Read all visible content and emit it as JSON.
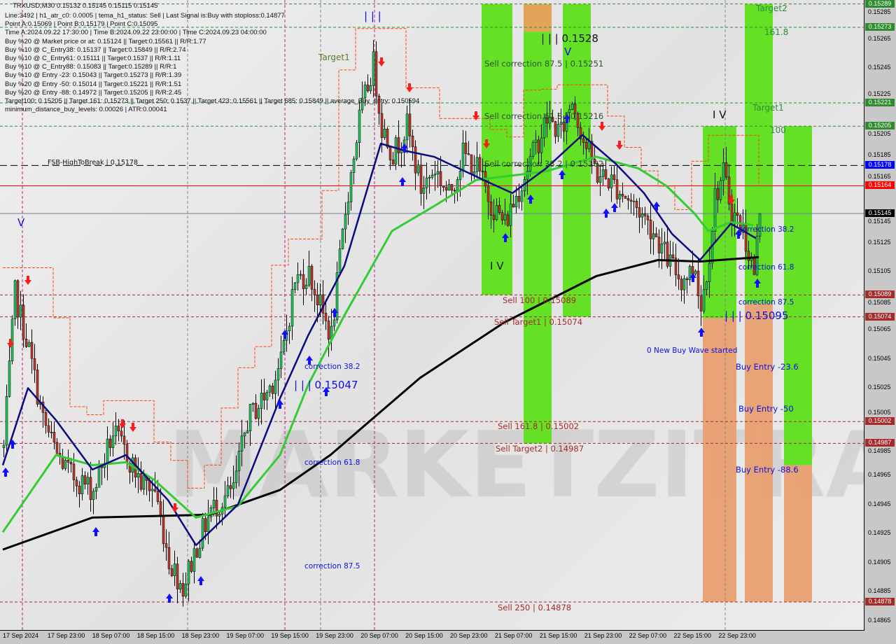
{
  "info": {
    "title_line": "TRXUSD,M30  0.15132 0.15145 0.15115 0.15145",
    "lines": [
      "Line:3492 | h1_atr_c0: 0.0005 | tema_h1_status: Sell | Last Signal is:Buy with stoploss:0.14877",
      "Point A:0.15069 | Point B:0.15179 | Point C:0.15095",
      "Time A:2024.09.22 17:30:00 | Time B:2024.09.22 23:00:00 | Time C:2024.09.23 04:00:00",
      "Buy %20 @ Market price or at: 0.15124 || Target:0.15561 || R/R:1.77",
      "Buy %10 @ C_Entry38: 0.15137 || Target:0.15849 || R/R:2.74",
      "Buy %10 @ C_Entry61: 0.15111 || Target:0.1537 || R/R:1.11",
      "Buy %10 @ C_Entry88: 0.15083 || Target:0.15289 || R/R:1",
      "Buy %10 @ Entry -23: 0.15043 || Target:0.15273 || R/R:1.39",
      "Buy %20 @ Entry -50: 0.15014 || Target:0.15221 || R/R:1.51",
      "Buy %20 @ Entry -88: 0.14972 || Target:0.15205 || R/R:2.45",
      "Target100: 0.15205 || Target 161: 0.15273 || Target 250: 0.1537 || Target 423: 0.15561 || Target 685: 0.15849 || average_Buy_entry: 0.150594",
      "minimum_distance_buy_levels: 0.00026 | ATR:0.00041"
    ]
  },
  "labels": {
    "target1_left": "Target1",
    "fsb": "FSB-HighToBreak | 0.15178",
    "wave_top": "| | | 0.1528",
    "sell_corr_875": "Sell correction 87.5 | 0.15251",
    "sell_corr_618": "Sell correction 61.8 | 0.15216",
    "sell_corr_382": "Sell correction 38.2 | 0.15182",
    "sell_100": "Sell 100 | 0.15089",
    "sell_target1": "Sell Target1 | 0.15074",
    "sell_1618": "Sell 161.8 | 0.15002",
    "sell_target2": "Sell Target2 | 0.14987",
    "sell_250": "Sell  250 | 0.14878",
    "corr_382_left": "correction 38.2",
    "wave_left": "| | | 0.15047",
    "corr_618_left": "correction 61.8",
    "corr_875_left": "correction 87.5",
    "iv_mid": "I V",
    "iv_right": "I V",
    "v_left": "V",
    "iii_top": "| | |",
    "v_top": "V",
    "new_wave": "0 New Buy Wave started",
    "corr_382_right": "correction 38.2",
    "corr_618_right": "correction 61.8",
    "corr_875_right": "correction 87.5",
    "wave_right": "| | | 0.15095",
    "buy_entry_236": "Buy Entry -23.6",
    "buy_entry_50": "Buy Entry -50",
    "buy_entry_886": "Buy Entry -88.6",
    "target2_right": "Target2",
    "lvl_1618": "161.8",
    "target1_right": "Target1",
    "lvl_100": "100",
    "watermark": "MARKETZITRADE"
  },
  "chart_data": {
    "type": "candlestick",
    "symbol": "TRXUSD",
    "timeframe": "M30",
    "ylim": [
      0.14855,
      0.15295
    ],
    "y_ticks": [
      "0.15285",
      "0.15265",
      "0.15245",
      "0.15225",
      "0.15205",
      "0.15185",
      "0.15165",
      "0.15145",
      "0.15125",
      "0.15105",
      "0.15085",
      "0.15065",
      "0.15045",
      "0.15025",
      "0.15005",
      "0.14985",
      "0.14965",
      "0.14945",
      "0.14925",
      "0.14905",
      "0.14885",
      "0.14865"
    ],
    "x_ticks": [
      "17 Sep 2024",
      "17 Sep 23:00",
      "18 Sep 07:00",
      "18 Sep 15:00",
      "18 Sep 23:00",
      "19 Sep 07:00",
      "19 Sep 15:00",
      "19 Sep 23:00",
      "20 Sep 07:00",
      "20 Sep 15:00",
      "20 Sep 23:00",
      "21 Sep 07:00",
      "21 Sep 15:00",
      "21 Sep 23:00",
      "22 Sep 07:00",
      "22 Sep 15:00",
      "22 Sep 23:00"
    ],
    "close_path": [
      [
        "2024-09-17 15:00",
        0.14984
      ],
      [
        "2024-09-17 17:00",
        0.1509
      ],
      [
        "2024-09-17 19:30",
        0.15051
      ],
      [
        "2024-09-17 22:00",
        0.15003
      ],
      [
        "2024-09-18 00:30",
        0.14979
      ],
      [
        "2024-09-18 03:00",
        0.14965
      ],
      [
        "2024-09-18 07:00",
        0.14955
      ],
      [
        "2024-09-18 10:30",
        0.14994
      ],
      [
        "2024-09-18 13:00",
        0.14979
      ],
      [
        "2024-09-18 15:30",
        0.1496
      ],
      [
        "2024-09-18 18:00",
        0.14955
      ],
      [
        "2024-09-18 20:30",
        0.14907
      ],
      [
        "2024-09-18 23:00",
        0.14888
      ],
      [
        "2024-09-19 01:30",
        0.14917
      ],
      [
        "2024-09-19 04:00",
        0.14941
      ],
      [
        "2024-09-19 08:00",
        0.14955
      ],
      [
        "2024-09-19 10:30",
        0.15003
      ],
      [
        "2024-09-19 14:00",
        0.15022
      ],
      [
        "2024-09-19 16:30",
        0.15042
      ],
      [
        "2024-09-19 19:00",
        0.15099
      ],
      [
        "2024-09-19 21:30",
        0.15104
      ],
      [
        "2024-09-20 00:00",
        0.15075
      ],
      [
        "2024-09-20 01:30",
        0.15061
      ],
      [
        "2024-09-20 04:00",
        0.15147
      ],
      [
        "2024-09-20 06:30",
        0.1521
      ],
      [
        "2024-09-20 09:00",
        0.15248
      ],
      [
        "2024-09-20 10:30",
        0.15205
      ],
      [
        "2024-09-20 12:30",
        0.15186
      ],
      [
        "2024-09-20 15:00",
        0.15205
      ],
      [
        "2024-09-20 17:30",
        0.15162
      ],
      [
        "2024-09-20 20:00",
        0.15176
      ],
      [
        "2024-09-20 22:30",
        0.15157
      ],
      [
        "2024-09-21 01:00",
        0.15186
      ],
      [
        "2024-09-21 03:30",
        0.15176
      ],
      [
        "2024-09-21 06:00",
        0.15152
      ],
      [
        "2024-09-21 08:30",
        0.15138
      ],
      [
        "2024-09-21 11:00",
        0.15162
      ],
      [
        "2024-09-21 13:30",
        0.15186
      ],
      [
        "2024-09-21 16:00",
        0.1521
      ],
      [
        "2024-09-21 18:30",
        0.152
      ],
      [
        "2024-09-21 20:30",
        0.15224
      ],
      [
        "2024-09-21 22:30",
        0.15196
      ],
      [
        "2024-09-22 01:00",
        0.15172
      ],
      [
        "2024-09-22 03:30",
        0.15167
      ],
      [
        "2024-09-22 06:00",
        0.15157
      ],
      [
        "2024-09-22 08:30",
        0.15147
      ],
      [
        "2024-09-22 11:00",
        0.15133
      ],
      [
        "2024-09-22 13:30",
        0.15114
      ],
      [
        "2024-09-22 16:00",
        0.15099
      ],
      [
        "2024-09-22 18:30",
        0.15109
      ],
      [
        "2024-09-22 19:30",
        0.1508
      ],
      [
        "2024-09-22 21:00",
        0.15119
      ],
      [
        "2024-09-22 22:00",
        0.15157
      ],
      [
        "2024-09-22 23:30",
        0.15172
      ],
      [
        "2024-09-23 01:00",
        0.15147
      ],
      [
        "2024-09-23 03:00",
        0.15133
      ],
      [
        "2024-09-23 05:00",
        0.15104
      ],
      [
        "2024-09-23 06:00",
        0.15145
      ]
    ],
    "moving_averages": [
      {
        "color": "#000000",
        "points": [
          [
            "2024-09-17 15:00",
            0.14914
          ],
          [
            "2024-09-18 07:00",
            0.14936
          ],
          [
            "2024-09-19 04:00",
            0.14938
          ],
          [
            "2024-09-19 16:30",
            0.14955
          ],
          [
            "2024-09-20 01:30",
            0.14979
          ],
          [
            "2024-09-20 17:30",
            0.15032
          ],
          [
            "2024-09-21 08:30",
            0.1507
          ],
          [
            "2024-09-22 01:00",
            0.15102
          ],
          [
            "2024-09-22 12:00",
            0.15113
          ],
          [
            "2024-09-22 19:30",
            0.15112
          ],
          [
            "2024-09-23 06:00",
            0.15115
          ]
        ]
      },
      {
        "color": "#33cc33",
        "points": [
          [
            "2024-09-17 15:00",
            0.14926
          ],
          [
            "2024-09-18 00:30",
            0.14979
          ],
          [
            "2024-09-18 07:00",
            0.14972
          ],
          [
            "2024-09-18 13:00",
            0.14974
          ],
          [
            "2024-09-18 18:00",
            0.14962
          ],
          [
            "2024-09-19 01:30",
            0.14936
          ],
          [
            "2024-09-19 09:00",
            0.14944
          ],
          [
            "2024-09-19 16:30",
            0.14979
          ],
          [
            "2024-09-19 21:30",
            0.15027
          ],
          [
            "2024-09-20 04:00",
            0.15075
          ],
          [
            "2024-09-20 12:30",
            0.15133
          ],
          [
            "2024-09-20 20:00",
            0.1515
          ],
          [
            "2024-09-21 03:30",
            0.15168
          ],
          [
            "2024-09-21 16:00",
            0.15174
          ],
          [
            "2024-09-22 01:00",
            0.15184
          ],
          [
            "2024-09-22 08:30",
            0.15176
          ],
          [
            "2024-09-22 13:30",
            0.15164
          ],
          [
            "2024-09-22 18:30",
            0.15145
          ],
          [
            "2024-09-22 21:00",
            0.15133
          ],
          [
            "2024-09-23 01:00",
            0.15139
          ],
          [
            "2024-09-23 05:00",
            0.15137
          ]
        ]
      },
      {
        "color": "#0a0a80",
        "points": [
          [
            "2024-09-17 15:00",
            0.14972
          ],
          [
            "2024-09-17 19:30",
            0.15025
          ],
          [
            "2024-09-18 00:30",
            0.15003
          ],
          [
            "2024-09-18 07:00",
            0.14969
          ],
          [
            "2024-09-18 13:00",
            0.14979
          ],
          [
            "2024-09-18 20:30",
            0.14948
          ],
          [
            "2024-09-19 01:30",
            0.14917
          ],
          [
            "2024-09-19 09:00",
            0.14945
          ],
          [
            "2024-09-19 16:30",
            0.15018
          ],
          [
            "2024-09-19 21:30",
            0.15061
          ],
          [
            "2024-09-20 04:00",
            0.15109
          ],
          [
            "2024-09-20 10:30",
            0.15193
          ],
          [
            "2024-09-20 15:00",
            0.15188
          ],
          [
            "2024-09-20 20:00",
            0.15184
          ],
          [
            "2024-09-21 06:00",
            0.15166
          ],
          [
            "2024-09-21 10:00",
            0.15159
          ],
          [
            "2024-09-21 16:00",
            0.15176
          ],
          [
            "2024-09-21 22:30",
            0.15199
          ],
          [
            "2024-09-22 04:30",
            0.15179
          ],
          [
            "2024-09-22 09:30",
            0.15159
          ],
          [
            "2024-09-22 14:30",
            0.15131
          ],
          [
            "2024-09-22 19:30",
            0.15113
          ],
          [
            "2024-09-23 01:00",
            0.15138
          ],
          [
            "2024-09-23 05:30",
            0.15128
          ]
        ]
      }
    ],
    "zones": [
      {
        "color": "#5ee01a",
        "from": "2024-09-21 04:30",
        "to": "2024-09-21 10:00",
        "top": 0.15289,
        "bottom": 0.15089
      },
      {
        "color": "#e0a050",
        "from": "2024-09-21 12:00",
        "to": "2024-09-21 17:00",
        "top": 0.15289,
        "bottom": 0.1527
      },
      {
        "color": "#5ee01a",
        "from": "2024-09-21 12:00",
        "to": "2024-09-21 17:00",
        "top": 0.1527,
        "bottom": 0.14987
      },
      {
        "color": "#5ee01a",
        "from": "2024-09-21 19:00",
        "to": "2024-09-22 00:00",
        "top": 0.15289,
        "bottom": 0.15074
      },
      {
        "color": "#5ee01a",
        "from": "2024-09-22 20:00",
        "to": "2024-09-23 02:00",
        "top": 0.15205,
        "bottom": 0.15073
      },
      {
        "color": "#e8a070",
        "from": "2024-09-22 20:00",
        "to": "2024-09-23 02:00",
        "top": 0.15073,
        "bottom": 0.14878
      },
      {
        "color": "#5ee01a",
        "from": "2024-09-23 03:30",
        "to": "2024-09-23 08:30",
        "top": 0.15289,
        "bottom": 0.15083
      },
      {
        "color": "#e8a070",
        "from": "2024-09-23 03:30",
        "to": "2024-09-23 08:30",
        "top": 0.15083,
        "bottom": 0.14878
      },
      {
        "color": "#5ee01a",
        "from": "2024-09-23 10:30",
        "to": "2024-09-23 15:30",
        "top": 0.15205,
        "bottom": 0.14972
      },
      {
        "color": "#e8a070",
        "from": "2024-09-23 10:30",
        "to": "2024-09-23 15:30",
        "top": 0.14972,
        "bottom": 0.14878
      }
    ],
    "levels": [
      {
        "price": "0.15289",
        "color": "#2e8b2e",
        "style": "dash",
        "tag_bg": "#2e8b2e"
      },
      {
        "price": "0.15273",
        "color": "#2e8b2e",
        "style": "dash",
        "tag_bg": "#2e8b2e"
      },
      {
        "price": "0.15221",
        "color": "#2e8b2e",
        "style": "dash",
        "tag_bg": "#2e8b2e"
      },
      {
        "price": "0.15205",
        "color": "#2e8b2e",
        "style": "dash",
        "tag_bg": "#2e8b2e"
      },
      {
        "price": "0.15178",
        "color": "#000000",
        "style": "longdash",
        "tag_bg": "#0000ff"
      },
      {
        "price": "0.15164",
        "color": "#ff0000",
        "style": "solid",
        "tag_bg": "#ff0000"
      },
      {
        "price": "0.15145",
        "color": "#708090",
        "style": "solid",
        "tag_bg": "#000000"
      },
      {
        "price": "0.15089",
        "color": "#a52a2a",
        "style": "dash",
        "tag_bg": "#a52a2a"
      },
      {
        "price": "0.15074",
        "color": "#a52a2a",
        "style": "dash",
        "tag_bg": "#a52a2a"
      },
      {
        "price": "0.15002",
        "color": "#a52a2a",
        "style": "dash",
        "tag_bg": "#a52a2a"
      },
      {
        "price": "0.14987",
        "color": "#a52a2a",
        "style": "dash",
        "tag_bg": "#a52a2a"
      },
      {
        "price": "0.14878",
        "color": "#a52a2a",
        "style": "dash",
        "tag_bg": "#a52a2a"
      }
    ],
    "colors": {
      "bull": "#22c55e",
      "bear": "#c0392b",
      "envelope": "#ff4500",
      "buy_arrow": "#1010ff",
      "sell_arrow": "#ff1a1a"
    }
  }
}
